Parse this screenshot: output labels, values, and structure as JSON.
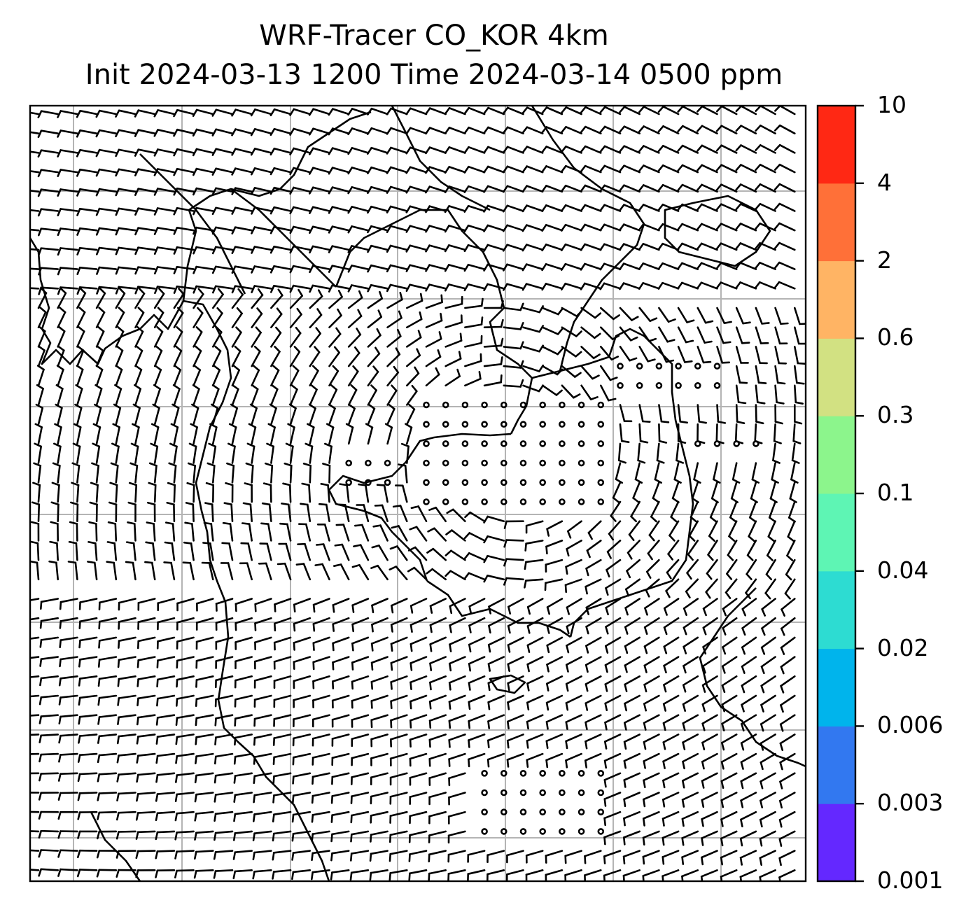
{
  "title": {
    "line1": "WRF-Tracer CO_KOR 4km",
    "line2": "Init 2024-03-13 1200 Time 2024-03-14 0500 ppm"
  },
  "colorbar": {
    "levels": [
      "0.001",
      "0.003",
      "0.006",
      "0.02",
      "0.04",
      "0.1",
      "0.3",
      "0.6",
      "2",
      "4",
      "10"
    ],
    "colors": [
      "#6428ff",
      "#3278f0",
      "#00b4ec",
      "#2ddcd2",
      "#5ef5b4",
      "#8cf58c",
      "#d2e182",
      "#ffb464",
      "#ff7038",
      "#ff2814"
    ]
  },
  "map": {
    "gridlines": true,
    "wind_barbs": true,
    "calm_markers": true,
    "coastlines": true
  }
}
